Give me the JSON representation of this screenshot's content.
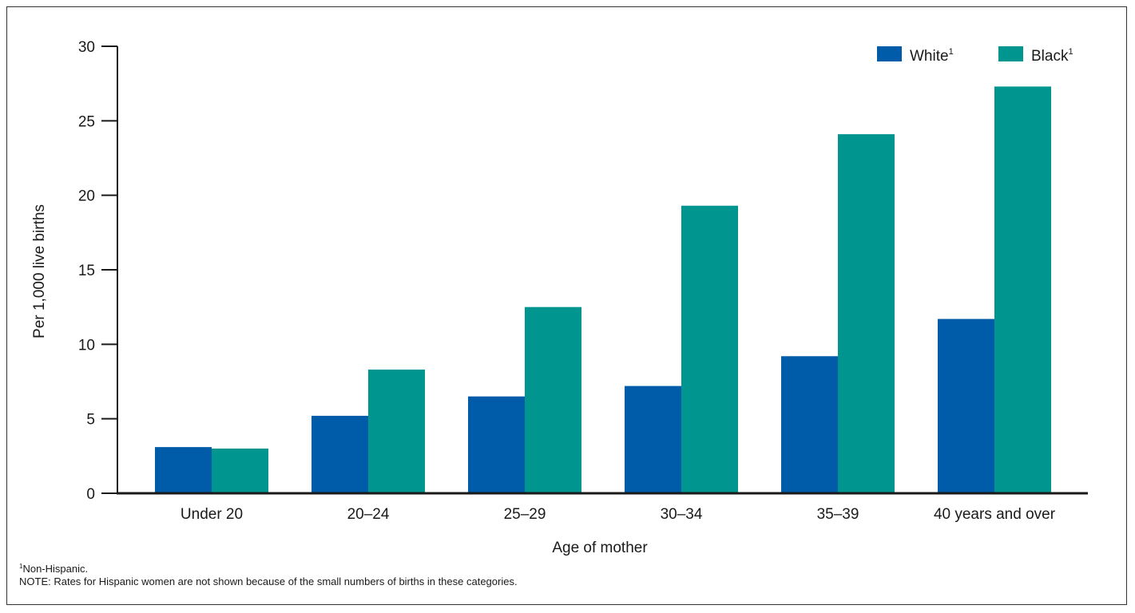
{
  "chart_data": {
    "type": "bar",
    "xlabel": "Age of mother",
    "ylabel": "Per 1,000 live births",
    "ylim": [
      0,
      30
    ],
    "yticks": [
      0,
      5,
      10,
      15,
      20,
      25,
      30
    ],
    "categories": [
      "Under 20",
      "20–24",
      "25–29",
      "30–34",
      "35–39",
      "40 years and over"
    ],
    "series": [
      {
        "name": "White",
        "superscript": "1",
        "color": "#005ba8",
        "values": [
          3.1,
          5.2,
          6.5,
          7.2,
          9.2,
          11.7
        ]
      },
      {
        "name": "Black",
        "superscript": "1",
        "color": "#00968f",
        "values": [
          3.0,
          8.3,
          12.5,
          19.3,
          24.1,
          27.3
        ]
      }
    ],
    "grid": false,
    "legend": "top-right"
  },
  "footnotes": {
    "marker": "1",
    "note1": "Non-Hispanic.",
    "note2": "NOTE:  Rates for Hispanic women are not shown because of the small numbers of births in these categories."
  }
}
